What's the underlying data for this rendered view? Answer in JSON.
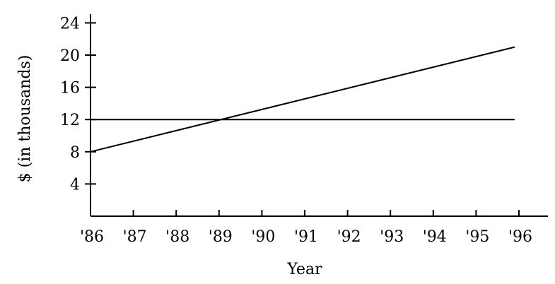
{
  "chart_data": {
    "type": "line",
    "xlabel": "Year",
    "ylabel": "$ (in thousands)",
    "x_ticks": [
      "'86",
      "'87",
      "'88",
      "'89",
      "'90",
      "'91",
      "'92",
      "'93",
      "'94",
      "'95",
      "'96"
    ],
    "y_ticks": [
      4,
      8,
      12,
      16,
      20,
      24
    ],
    "xlim": [
      0,
      10.7
    ],
    "ylim": [
      0,
      25.5
    ],
    "grid": false,
    "series": [
      {
        "values": [
          [
            0,
            8
          ],
          [
            9.9,
            21
          ]
        ]
      },
      {
        "values": [
          [
            0,
            12
          ],
          [
            9.9,
            12
          ]
        ]
      }
    ]
  }
}
